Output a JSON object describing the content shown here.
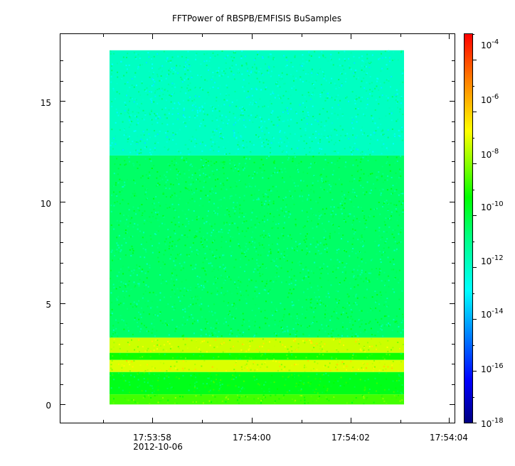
{
  "chart_data": {
    "type": "heatmap",
    "title": "FFTPower of RBSPB/EMFISIS  BuSamples",
    "xlabel": "",
    "ylabel": "",
    "x_tick_labels": [
      "17:53:58",
      "17:54:00",
      "17:54:02",
      "17:54:04"
    ],
    "x_date_label": "2012-10-06",
    "y_ticks": [
      0,
      5,
      10,
      15
    ],
    "y_tick_labels": [
      "0",
      "5",
      "10",
      "15"
    ],
    "ylim": [
      -0.9,
      18.3
    ],
    "data_ylim": [
      0.0,
      17.5
    ],
    "colorbar": {
      "scale": "log",
      "range": [
        1e-18,
        0.001
      ],
      "tick_labels": [
        {
          "base": "10",
          "exp": "-4"
        },
        {
          "base": "10",
          "exp": "-6"
        },
        {
          "base": "10",
          "exp": "-8"
        },
        {
          "base": "10",
          "exp": "-10"
        },
        {
          "base": "10",
          "exp": "-12"
        },
        {
          "base": "10",
          "exp": "-14"
        },
        {
          "base": "10",
          "exp": "-16"
        },
        {
          "base": "10",
          "exp": "-18"
        }
      ],
      "tick_exponents": [
        -4,
        -6,
        -8,
        -10,
        -12,
        -14,
        -16,
        -18
      ],
      "colors": [
        "#00007f",
        "#0000ff",
        "#007fff",
        "#00ffff",
        "#00ff7f",
        "#00ff00",
        "#7fff00",
        "#ffff00",
        "#ff7f00",
        "#ff0000"
      ]
    },
    "bands": [
      {
        "y_from": 12.3,
        "y_to": 17.5,
        "log_power": -12.2
      },
      {
        "y_from": 3.3,
        "y_to": 12.3,
        "log_power": -11.0
      },
      {
        "y_from": 2.55,
        "y_to": 3.3,
        "log_power": -7.0
      },
      {
        "y_from": 2.2,
        "y_to": 2.55,
        "log_power": -9.5
      },
      {
        "y_from": 1.6,
        "y_to": 2.2,
        "log_power": -6.8
      },
      {
        "y_from": 0.5,
        "y_to": 1.6,
        "log_power": -10.0
      },
      {
        "y_from": 0.0,
        "y_to": 0.5,
        "log_power": -8.8
      }
    ]
  }
}
